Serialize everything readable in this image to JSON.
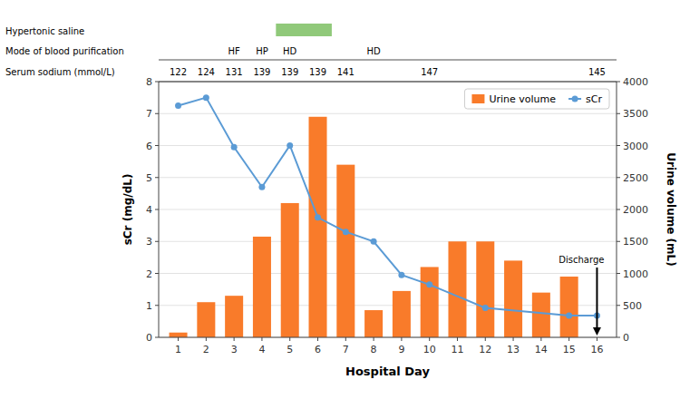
{
  "chart_data": {
    "type": "bar",
    "xlabel": "Hospital Day",
    "ylabel": "sCr (mg/dL)",
    "y2label": "Urine volume (mL)",
    "xlim": [
      0.3,
      16.7
    ],
    "xticks": [
      1,
      2,
      3,
      4,
      5,
      6,
      7,
      8,
      9,
      10,
      11,
      12,
      13,
      14,
      15,
      16
    ],
    "ylim": [
      0,
      8
    ],
    "yticks": [
      0,
      1,
      2,
      3,
      4,
      5,
      6,
      7,
      8
    ],
    "y2lim": [
      0,
      4000
    ],
    "y2ticks": [
      0,
      500,
      1000,
      1500,
      2000,
      2500,
      3000,
      3500,
      4000
    ],
    "grid": true,
    "legend": "upper right",
    "series": [
      {
        "name": "Urine volume",
        "type": "bar",
        "axis": "y2",
        "color": "#F97B2A",
        "x": [
          1,
          2,
          3,
          4,
          5,
          6,
          7,
          8,
          9,
          10,
          11,
          12,
          13,
          14,
          15
        ],
        "values": [
          75,
          550,
          650,
          1575,
          2100,
          3450,
          2700,
          425,
          725,
          1100,
          1500,
          1500,
          1200,
          700,
          950
        ]
      },
      {
        "name": "sCr",
        "type": "line",
        "color": "#5B9BD5",
        "marker": "circle",
        "x": [
          1,
          2,
          3,
          4,
          5,
          6,
          7,
          8,
          9,
          10,
          12,
          15,
          16
        ],
        "values": [
          7.25,
          7.5,
          5.95,
          4.7,
          6.0,
          3.75,
          3.3,
          3.0,
          1.95,
          1.65,
          0.92,
          0.68,
          0.68
        ]
      }
    ],
    "annotations": [
      {
        "text": "Discharge",
        "x": 16
      }
    ],
    "hypertonic_saline": {
      "label": "Hypertonic saline",
      "start": 4.5,
      "end": 6.5,
      "color": "#90C97A"
    },
    "blood_purification": {
      "label": "Mode of blood purification",
      "x": [
        3,
        4,
        5,
        8
      ],
      "labels": [
        "HF",
        "HP",
        "HD",
        "HD"
      ]
    },
    "serum_sodium": {
      "label": "Serum sodium (mmol/L)",
      "x": [
        1,
        2,
        3,
        4,
        5,
        6,
        7,
        10,
        16
      ],
      "values": [
        122,
        124,
        131,
        139,
        139,
        139,
        141,
        147,
        145
      ]
    }
  }
}
